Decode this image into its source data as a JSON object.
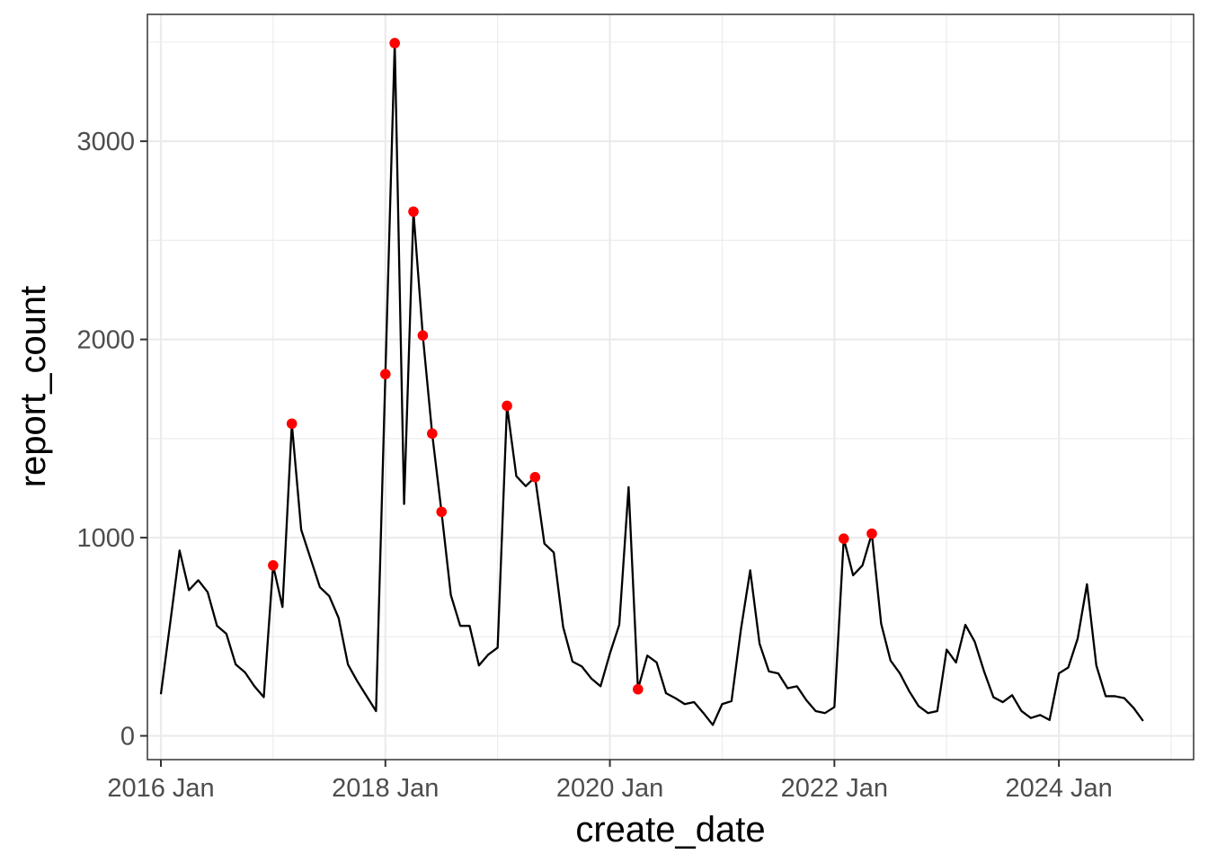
{
  "chart_data": {
    "type": "line",
    "title": "",
    "xlabel": "create_date",
    "ylabel": "report_count",
    "x_tick_labels": [
      "2016 Jan",
      "2018 Jan",
      "2020 Jan",
      "2022 Jan",
      "2024 Jan"
    ],
    "x_tick_years": [
      2016,
      2018,
      2020,
      2022,
      2024
    ],
    "y_tick_labels": [
      "0",
      "1000",
      "2000",
      "3000"
    ],
    "y_tick_values": [
      0,
      1000,
      2000,
      3000
    ],
    "xlim_year_fraction": [
      2015.88,
      2025.2
    ],
    "ylim": [
      -120,
      3640
    ],
    "grid": true,
    "colors": {
      "line": "#000000",
      "highlight": "#ff0000",
      "panel_border": "#333333",
      "grid": "#ebebeb"
    },
    "series": [
      {
        "name": "report_count",
        "start": "2016-01",
        "interval": "month",
        "values": [
          210,
          570,
          935,
          735,
          785,
          725,
          555,
          515,
          360,
          320,
          250,
          195,
          860,
          650,
          1575,
          1040,
          895,
          750,
          705,
          595,
          360,
          275,
          200,
          125,
          1825,
          3495,
          1170,
          2645,
          2020,
          1525,
          1130,
          710,
          555,
          555,
          355,
          410,
          445,
          1665,
          1310,
          1260,
          1305,
          970,
          925,
          550,
          375,
          350,
          290,
          250,
          415,
          560,
          1255,
          235,
          405,
          370,
          215,
          190,
          160,
          170,
          115,
          55,
          160,
          175,
          535,
          835,
          465,
          325,
          315,
          240,
          250,
          180,
          125,
          115,
          145,
          995,
          810,
          860,
          1020,
          565,
          380,
          315,
          225,
          150,
          115,
          125,
          435,
          370,
          560,
          475,
          325,
          195,
          170,
          205,
          125,
          90,
          105,
          80,
          315,
          345,
          490,
          765,
          355,
          200,
          200,
          190,
          140,
          75
        ]
      }
    ],
    "highlighted_points": [
      {
        "date": "2017-01",
        "value": 860
      },
      {
        "date": "2017-03",
        "value": 1575
      },
      {
        "date": "2018-01",
        "value": 1825
      },
      {
        "date": "2018-02",
        "value": 3495
      },
      {
        "date": "2018-04",
        "value": 2645
      },
      {
        "date": "2018-05",
        "value": 2020
      },
      {
        "date": "2018-06",
        "value": 1525
      },
      {
        "date": "2018-07",
        "value": 1130
      },
      {
        "date": "2019-02",
        "value": 1665
      },
      {
        "date": "2019-05",
        "value": 1305
      },
      {
        "date": "2020-04",
        "value": 235
      },
      {
        "date": "2022-02",
        "value": 995
      },
      {
        "date": "2022-05",
        "value": 1020
      }
    ]
  }
}
